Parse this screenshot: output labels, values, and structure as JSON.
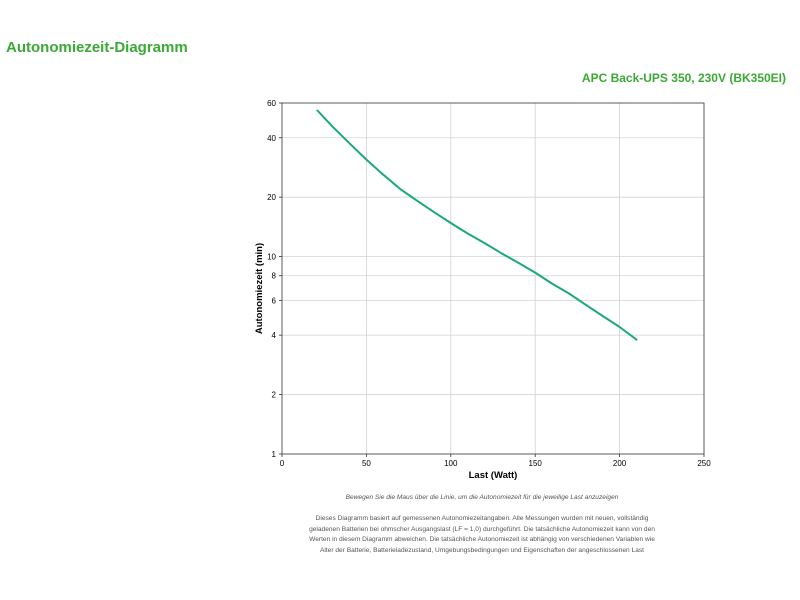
{
  "page": {
    "title": "Autonomiezeit-Diagramm",
    "product": "APC Back-UPS 350, 230V (BK350EI)",
    "accent_color": "#3ba935",
    "hint": "Bewegen Sie die Maus über die Linie, um die Autonomiezeit für die jeweilige Last anzuzeigen",
    "disclaimer": [
      "Dieses Diagramm basiert auf gemessenen Autonomiezeitangaben. Alle Messungen wurden mit neuen, vollständig",
      "geladenen Batterien bei ohmscher Ausgangslast (LF = 1,0) durchgeführt. Die tatsächliche Autonomiezeit kann von den",
      "Werten in diesem Diagramm abweichen. Die tatsächliche Autonomiezeit ist abhängig von verschiedenen Variablen wie",
      "Alter der Batterie, Batterieladezustand, Umgebungsbedingungen und Eigenschaften der angeschlossenen Last"
    ]
  },
  "chart_data": {
    "type": "line",
    "title": "",
    "xlabel": "Last (Watt)",
    "ylabel": "Autonomiezeit (min)",
    "xlim": [
      0,
      250
    ],
    "ylim": [
      1,
      60
    ],
    "yscale": "log",
    "grid": true,
    "legend": "none",
    "line_color": "#1aa97a",
    "xticks": [
      0,
      50,
      100,
      150,
      200,
      250
    ],
    "yticks": [
      1,
      2,
      4,
      6,
      8,
      10,
      20,
      40,
      60
    ],
    "series": [
      {
        "x": [
          21,
          30,
          40,
          50,
          60,
          70,
          80,
          90,
          100,
          110,
          120,
          130,
          140,
          150,
          160,
          170,
          180,
          190,
          200,
          210
        ],
        "y": [
          55,
          45.5,
          37.5,
          31,
          26,
          22,
          19.2,
          16.8,
          14.8,
          13.1,
          11.7,
          10.4,
          9.3,
          8.3,
          7.3,
          6.5,
          5.7,
          5.0,
          4.4,
          3.8
        ]
      }
    ]
  }
}
